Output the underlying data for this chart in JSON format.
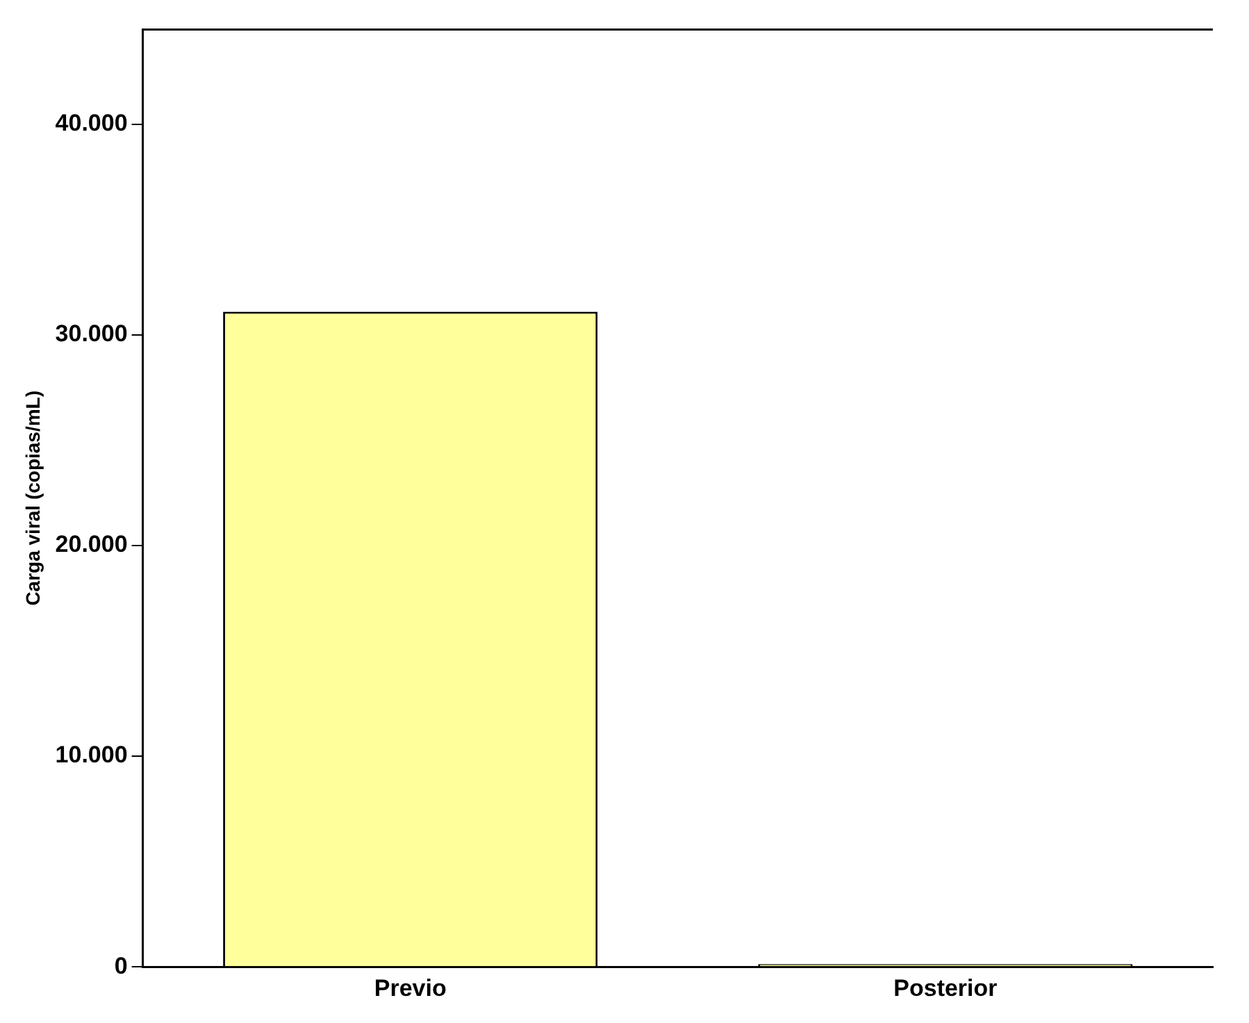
{
  "chart_data": {
    "type": "bar",
    "ylabel": "Carga viral (copias/mL)",
    "categories": [
      "Previo",
      "Posterior"
    ],
    "values": [
      31100,
      0
    ],
    "color": "#ffff9c",
    "ylim": [
      0,
      44500
    ],
    "yticks": [
      {
        "value": 0,
        "label": "0"
      },
      {
        "value": 10000,
        "label": "10.000"
      },
      {
        "value": 20000,
        "label": "20.000"
      },
      {
        "value": 30000,
        "label": "30.000"
      },
      {
        "value": 40000,
        "label": "40.000"
      }
    ],
    "grid": false
  }
}
